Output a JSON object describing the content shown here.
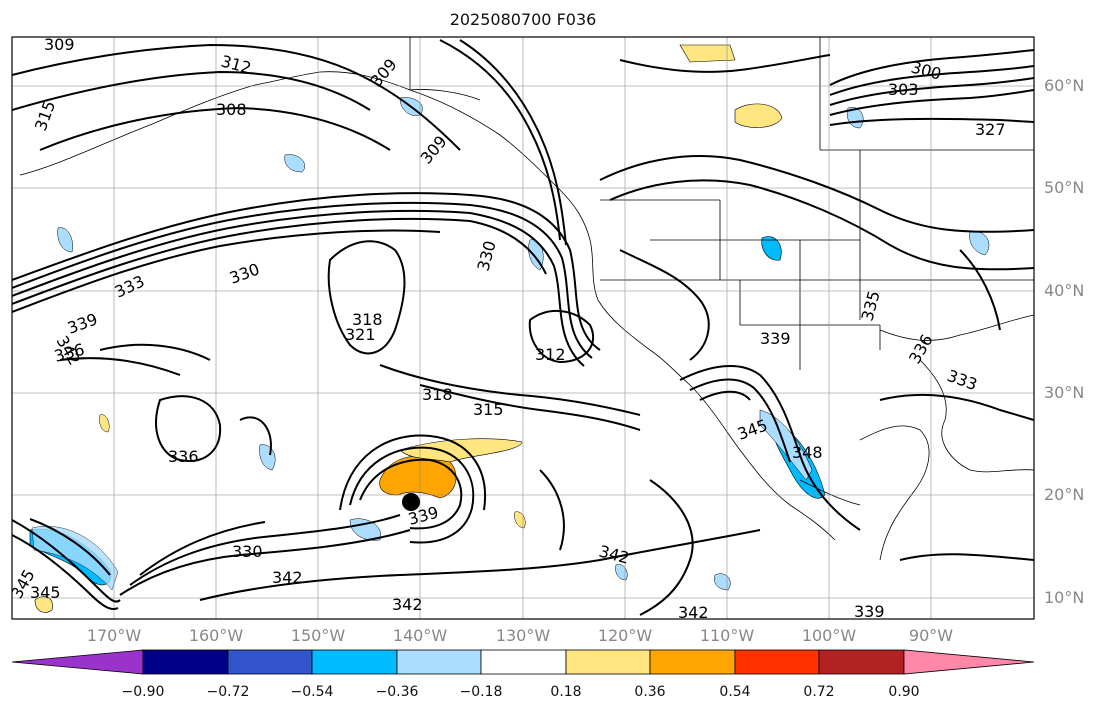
{
  "title": "2025080700 F036",
  "map": {
    "lat_labels": [
      "60°N",
      "50°N",
      "40°N",
      "30°N",
      "20°N",
      "10°N"
    ],
    "lon_labels": [
      "170°W",
      "160°W",
      "150°W",
      "140°W",
      "130°W",
      "120°W",
      "110°W",
      "100°W",
      "90°W"
    ],
    "contour_labels": [
      "309",
      "312",
      "315",
      "308",
      "309",
      "309",
      "300",
      "303",
      "327",
      "330",
      "339",
      "336",
      "333",
      "342",
      "318",
      "321",
      "312",
      "315",
      "318",
      "336",
      "330",
      "330",
      "342",
      "345",
      "345",
      "339",
      "342",
      "342",
      "342",
      "339",
      "348",
      "345",
      "335",
      "336",
      "333",
      "339"
    ]
  },
  "colorbar": {
    "ticks": [
      "−0.90",
      "−0.72",
      "−0.54",
      "−0.36",
      "−0.18",
      "0.18",
      "0.36",
      "0.54",
      "0.72",
      "0.90"
    ],
    "colors": [
      "#9933cc",
      "#000088",
      "#3355cc",
      "#00bbff",
      "#aaddff",
      "#ffffff",
      "#ffe680",
      "#ffa500",
      "#ff3300",
      "#b22222",
      "#ff88aa"
    ]
  }
}
